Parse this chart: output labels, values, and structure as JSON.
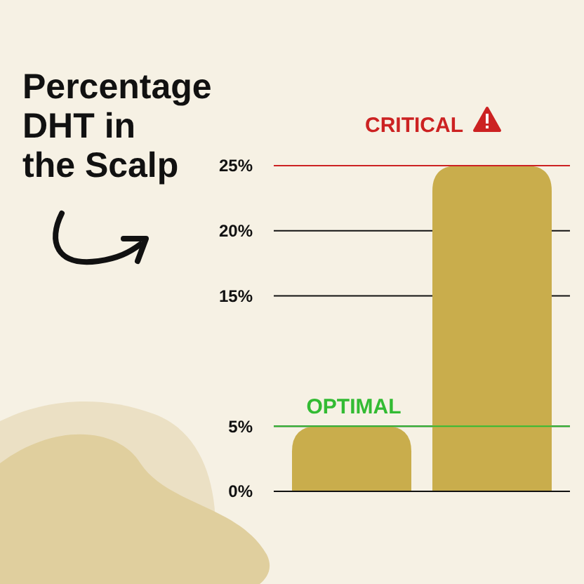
{
  "chart_data": {
    "type": "bar",
    "title": "Percentage DHT in the Scalp",
    "categories": [
      null,
      null
    ],
    "values": [
      5,
      25
    ],
    "color": "#c9ad4c",
    "ylim": [
      0,
      25
    ],
    "yticks": [
      {
        "value": 0,
        "label": "0%"
      },
      {
        "value": 5,
        "label": "5%"
      },
      {
        "value": 15,
        "label": "15%"
      },
      {
        "value": 20,
        "label": "20%"
      },
      {
        "value": 25,
        "label": "25%"
      }
    ],
    "grid": "y",
    "ref_lines": [
      {
        "axis": "y",
        "value": 5,
        "label": "OPTIMAL",
        "color": "#33bb33"
      },
      {
        "axis": "y",
        "value": 25,
        "label": "CRITICAL",
        "color": "#cc2222"
      }
    ]
  }
}
